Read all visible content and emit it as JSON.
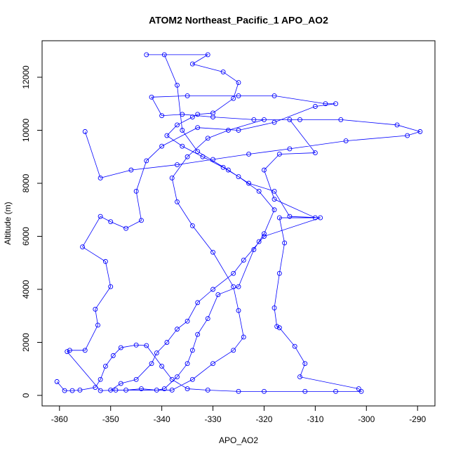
{
  "chart_data": {
    "type": "line",
    "title": "ATOM2 Northeast_Pacific_1 APO_AO2",
    "xlabel": "APO_AO2",
    "ylabel": "Altitude (m)",
    "color": "#0000ff",
    "x": [
      -360.5,
      -359,
      -357.5,
      -356,
      -353,
      -352,
      -351,
      -349.5,
      -348,
      -345,
      -343,
      -340,
      -338,
      -335,
      -331,
      -325,
      -320,
      -312,
      -306,
      -301,
      -301.5,
      -313,
      -312,
      -314,
      -317,
      -317.5,
      -318,
      -317,
      -316,
      -317,
      -310,
      -318,
      -320,
      -317,
      -310,
      -315,
      -322,
      -330,
      -336,
      -340,
      -342,
      -335,
      -325,
      -318,
      -308,
      -306,
      -310,
      -318,
      -325,
      -333,
      -340,
      -343,
      -345,
      -344,
      -347,
      -350,
      -352,
      -355.5,
      -351,
      -350,
      -353,
      -352.5,
      -355,
      -358,
      -358.5,
      -352,
      -349,
      -347,
      -344,
      -341,
      -339.5,
      -337,
      -335,
      -334,
      -333,
      -331,
      -329,
      -325,
      -322,
      -321,
      -320,
      -318,
      -321,
      -325,
      -328,
      -332,
      -336,
      -339,
      -337,
      -334,
      -333,
      -330,
      -326,
      -325,
      -328,
      -334,
      -331,
      -343,
      -339.5,
      -337,
      -336,
      -333,
      -327,
      -323,
      -318,
      -315,
      -309,
      -320,
      -324,
      -326,
      -330,
      -333,
      -335,
      -337,
      -339,
      -341,
      -342,
      -345,
      -348,
      -350,
      -338,
      -334,
      -330,
      -326,
      -324,
      -325,
      -326,
      -330,
      -334,
      -337,
      -338,
      -335,
      -331,
      -327,
      -320,
      -313,
      -305,
      -294,
      -289.5,
      -292,
      -304,
      -315,
      -323,
      -330,
      -337,
      -346,
      -352,
      -355
    ],
    "values": [
      520,
      180,
      180,
      200,
      300,
      600,
      1100,
      1500,
      1800,
      1900,
      1880,
      1100,
      600,
      250,
      200,
      150,
      150,
      150,
      150,
      150,
      250,
      700,
      1200,
      1850,
      2550,
      2600,
      3300,
      4600,
      5750,
      6700,
      6700,
      7400,
      8500,
      9100,
      9150,
      10400,
      10400,
      10500,
      10600,
      10550,
      11250,
      11300,
      11300,
      11300,
      11000,
      11000,
      10900,
      10300,
      10000,
      10100,
      9400,
      8850,
      7700,
      6600,
      6300,
      6550,
      6750,
      5600,
      5050,
      4100,
      3250,
      2650,
      1700,
      1700,
      1650,
      180,
      200,
      200,
      250,
      200,
      250,
      700,
      1200,
      1700,
      2300,
      2900,
      3800,
      4100,
      5500,
      5800,
      6100,
      7000,
      7700,
      8250,
      8600,
      9000,
      9400,
      9800,
      10200,
      10500,
      10600,
      10650,
      11200,
      11800,
      12200,
      12500,
      12850,
      12850,
      12850,
      11700,
      10000,
      9200,
      8500,
      8000,
      7700,
      6750,
      6700,
      6000,
      5100,
      4600,
      4000,
      3500,
      2800,
      2500,
      2000,
      1600,
      1200,
      600,
      450,
      200,
      200,
      600,
      1200,
      1700,
      2200,
      3200,
      4100,
      5400,
      6400,
      7300,
      8200,
      9000,
      9700,
      10000,
      10400,
      10400,
      10400,
      10200,
      9950,
      9800,
      9600,
      9300,
      9100,
      8900,
      8700,
      8500,
      8200,
      9950
    ],
    "xlim": [
      -363.4,
      -286.6
    ],
    "ylim": [
      -397,
      13377
    ],
    "xticks": [
      -360,
      -350,
      -340,
      -330,
      -320,
      -310,
      -300,
      -290
    ],
    "yticks": [
      0,
      2000,
      4000,
      6000,
      8000,
      10000,
      12000
    ]
  }
}
